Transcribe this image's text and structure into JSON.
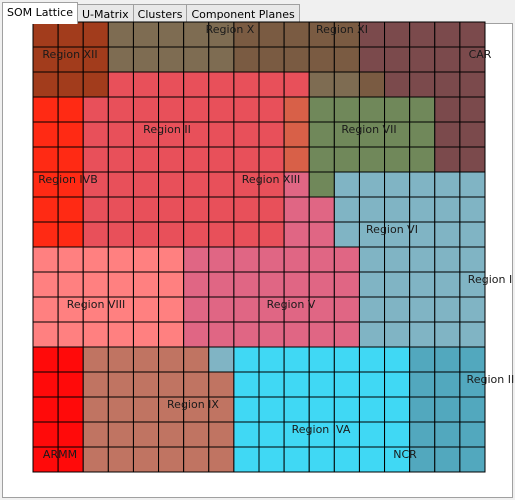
{
  "tabs": [
    "SOM Lattice",
    "U-Matrix",
    "Clusters",
    "Component Planes"
  ],
  "regions": [
    "Region X",
    "Region XI",
    "Region XII",
    "CAR",
    "Region II",
    "Region VII",
    "Region IVB",
    "Region XIII",
    "Region VI",
    "Region I",
    "Region VIII",
    "Region V",
    "Region III",
    "Region IX",
    "Region IVA",
    "ARMM",
    "NCR"
  ]
}
